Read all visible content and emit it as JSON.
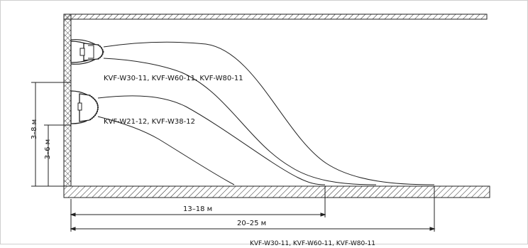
{
  "models": {
    "upper": "KVF-W30-11, KVF-W60-11, KVF-W80-11",
    "lower": "KVF-W21-12, KVF-W38-12",
    "footer": "KVF-W30-11, KVF-W60-11, KVF-W80-11"
  },
  "heights": {
    "upper": "3–8 м",
    "lower": "3–6 м"
  },
  "distances": {
    "lower": "13–18 м",
    "upper": "20–25 м"
  }
}
